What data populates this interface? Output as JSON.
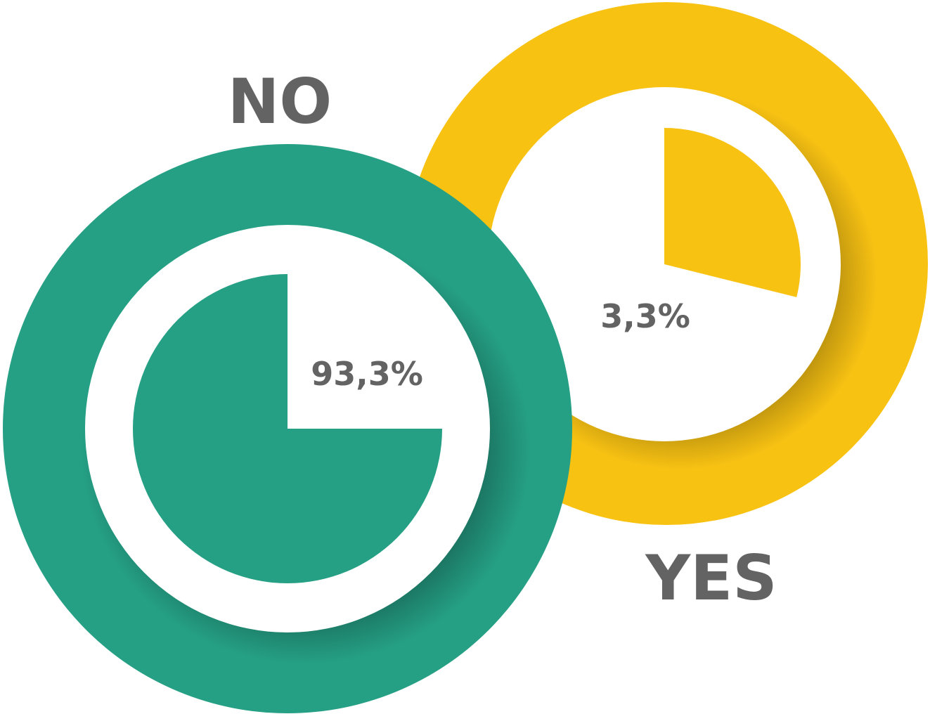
{
  "chart_data": {
    "type": "pie",
    "title": "",
    "charts": [
      {
        "label": "NO",
        "value": 93.3,
        "value_label": "93,3%",
        "color": "#25A085"
      },
      {
        "label": "YES",
        "value": 3.3,
        "value_label": "3,3%",
        "color": "#F8C213"
      }
    ]
  },
  "colors": {
    "text": "#636363",
    "inner_background": "#ffffff"
  }
}
